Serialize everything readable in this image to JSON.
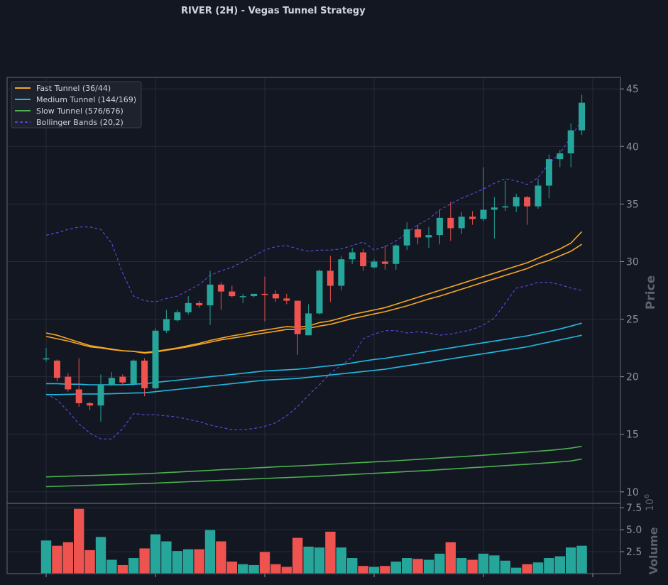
{
  "colors": {
    "background": "#131722",
    "panel": "#131722",
    "grid": "#262b38",
    "axis": "#4a4f5c",
    "text": "#d1d4dc",
    "tick": "#8c919c",
    "up": "#26a69a",
    "down": "#ef5350",
    "fast": "#f5a623",
    "medium": "#22b8e0",
    "slow": "#4caf50",
    "bollinger": "#6a4cf5"
  },
  "chart_data": {
    "type": "candlestick",
    "title": "RIVER (2H) - Vegas Tunnel Strategy",
    "ylabel": "Price",
    "volume_label": "Volume",
    "volume_unit": "1e6",
    "ylim": [
      9,
      46
    ],
    "vol_ylim": [
      0,
      8
    ],
    "yticks": [
      "10",
      "15",
      "20",
      "25",
      "30",
      "35",
      "40",
      "45"
    ],
    "vol_ticks": [
      "2.5",
      "5.0",
      "7.5"
    ],
    "legend": [
      {
        "label": "Fast Tunnel (36/44)",
        "key": "fast"
      },
      {
        "label": "Medium Tunnel (144/169)",
        "key": "medium"
      },
      {
        "label": "Slow Tunnel (576/676)",
        "key": "slow"
      },
      {
        "label": "Bollinger Bands (20,2)",
        "key": "bollinger"
      }
    ],
    "candles": [
      [
        21.5,
        21.6,
        21.3,
        22.5
      ],
      [
        21.4,
        19.9,
        19.6,
        21.5
      ],
      [
        20.0,
        18.9,
        18.7,
        20.3
      ],
      [
        18.9,
        17.7,
        17.4,
        21.6
      ],
      [
        17.7,
        17.5,
        17.1,
        17.8
      ],
      [
        17.5,
        19.3,
        16.1,
        20.2
      ],
      [
        19.3,
        19.9,
        19.2,
        20.4
      ],
      [
        20.0,
        19.5,
        19.3,
        20.2
      ],
      [
        19.4,
        21.4,
        19.2,
        21.5
      ],
      [
        21.4,
        19.0,
        18.3,
        21.6
      ],
      [
        19.0,
        24.0,
        18.9,
        24.2
      ],
      [
        24.0,
        25.0,
        23.8,
        25.8
      ],
      [
        24.9,
        25.6,
        24.8,
        25.8
      ],
      [
        25.6,
        26.4,
        25.4,
        27.0
      ],
      [
        26.4,
        26.2,
        26.0,
        26.6
      ],
      [
        26.2,
        28.0,
        24.5,
        29.2
      ],
      [
        28.0,
        27.4,
        25.8,
        28.2
      ],
      [
        27.4,
        27.0,
        26.9,
        27.9
      ],
      [
        27.0,
        27.0,
        26.4,
        27.2
      ],
      [
        27.0,
        27.2,
        26.9,
        27.2
      ],
      [
        27.2,
        27.1,
        24.8,
        28.7
      ],
      [
        27.2,
        26.8,
        26.5,
        27.5
      ],
      [
        26.8,
        26.6,
        26.3,
        27.2
      ],
      [
        26.6,
        23.7,
        21.9,
        26.6
      ],
      [
        23.6,
        25.5,
        23.6,
        26.3
      ],
      [
        25.5,
        29.2,
        25.4,
        29.3
      ],
      [
        29.2,
        27.9,
        26.5,
        30.5
      ],
      [
        27.9,
        30.2,
        27.5,
        30.5
      ],
      [
        30.2,
        30.8,
        29.8,
        31.2
      ],
      [
        30.8,
        29.6,
        29.2,
        31.1
      ],
      [
        29.5,
        30.0,
        29.4,
        30.2
      ],
      [
        30.0,
        29.8,
        29.3,
        31.4
      ],
      [
        29.8,
        31.4,
        29.3,
        31.5
      ],
      [
        31.4,
        32.8,
        31.0,
        33.4
      ],
      [
        32.8,
        32.1,
        31.5,
        33.2
      ],
      [
        32.1,
        32.3,
        31.2,
        33.0
      ],
      [
        32.3,
        33.8,
        31.5,
        34.5
      ],
      [
        33.8,
        32.9,
        31.8,
        35.2
      ],
      [
        32.9,
        33.9,
        32.4,
        34.3
      ],
      [
        33.9,
        33.7,
        33.2,
        34.4
      ],
      [
        33.7,
        34.5,
        33.5,
        38.2
      ],
      [
        34.5,
        34.7,
        32.0,
        35.6
      ],
      [
        34.7,
        34.8,
        34.4,
        37.0
      ],
      [
        34.8,
        35.6,
        34.3,
        35.9
      ],
      [
        35.6,
        34.8,
        33.2,
        35.7
      ],
      [
        34.8,
        36.6,
        34.6,
        37.2
      ],
      [
        36.6,
        38.9,
        35.5,
        39.3
      ],
      [
        38.9,
        39.4,
        38.2,
        39.7
      ],
      [
        39.4,
        41.4,
        38.2,
        42.0
      ],
      [
        41.4,
        43.8,
        41.0,
        44.5
      ]
    ],
    "volume": [
      3.8,
      3.2,
      3.6,
      7.4,
      2.7,
      4.2,
      1.6,
      1.0,
      1.8,
      2.9,
      4.5,
      3.7,
      2.6,
      2.8,
      2.8,
      5.0,
      3.7,
      1.4,
      1.1,
      1.0,
      2.5,
      1.1,
      0.8,
      4.1,
      3.1,
      3.0,
      4.8,
      3.0,
      1.8,
      0.9,
      0.8,
      0.9,
      1.4,
      1.8,
      1.7,
      1.6,
      2.3,
      3.6,
      1.8,
      1.6,
      2.3,
      2.1,
      1.5,
      0.7,
      1.1,
      1.3,
      1.8,
      2.0,
      3.0,
      3.2
    ],
    "fast_upper": [
      23.8,
      23.6,
      23.3,
      23.0,
      22.7,
      22.55,
      22.4,
      22.25,
      22.2,
      22.1,
      22.2,
      22.35,
      22.5,
      22.7,
      22.9,
      23.15,
      23.35,
      23.55,
      23.7,
      23.9,
      24.05,
      24.2,
      24.35,
      24.3,
      24.4,
      24.7,
      24.85,
      25.1,
      25.4,
      25.6,
      25.8,
      26.0,
      26.3,
      26.6,
      26.9,
      27.2,
      27.5,
      27.8,
      28.1,
      28.4,
      28.7,
      29.0,
      29.3,
      29.6,
      29.9,
      30.3,
      30.7,
      31.1,
      31.6,
      32.6
    ],
    "fast_lower": [
      23.5,
      23.3,
      23.1,
      22.85,
      22.6,
      22.5,
      22.35,
      22.25,
      22.2,
      22.05,
      22.15,
      22.3,
      22.45,
      22.6,
      22.8,
      23.0,
      23.2,
      23.35,
      23.5,
      23.65,
      23.8,
      23.95,
      24.1,
      24.1,
      24.2,
      24.4,
      24.55,
      24.8,
      25.05,
      25.25,
      25.45,
      25.65,
      25.9,
      26.15,
      26.45,
      26.75,
      27.0,
      27.3,
      27.6,
      27.9,
      28.2,
      28.5,
      28.8,
      29.1,
      29.4,
      29.8,
      30.1,
      30.5,
      30.9,
      31.5
    ],
    "medium_upper": [
      19.4,
      19.4,
      19.35,
      19.35,
      19.3,
      19.3,
      19.3,
      19.3,
      19.35,
      19.4,
      19.5,
      19.6,
      19.7,
      19.8,
      19.9,
      20.0,
      20.1,
      20.2,
      20.3,
      20.4,
      20.5,
      20.55,
      20.6,
      20.65,
      20.75,
      20.85,
      20.95,
      21.05,
      21.2,
      21.35,
      21.5,
      21.6,
      21.75,
      21.9,
      22.05,
      22.2,
      22.35,
      22.5,
      22.65,
      22.8,
      22.95,
      23.1,
      23.25,
      23.4,
      23.55,
      23.75,
      23.95,
      24.15,
      24.4,
      24.65
    ],
    "medium_lower": [
      18.45,
      18.45,
      18.47,
      18.5,
      18.5,
      18.5,
      18.52,
      18.55,
      18.58,
      18.6,
      18.7,
      18.8,
      18.9,
      19.0,
      19.1,
      19.2,
      19.3,
      19.4,
      19.5,
      19.6,
      19.7,
      19.75,
      19.8,
      19.85,
      19.95,
      20.05,
      20.15,
      20.25,
      20.35,
      20.45,
      20.55,
      20.65,
      20.8,
      20.95,
      21.1,
      21.25,
      21.4,
      21.55,
      21.7,
      21.85,
      22.0,
      22.15,
      22.3,
      22.45,
      22.6,
      22.8,
      23.0,
      23.2,
      23.4,
      23.6
    ],
    "slow_upper": [
      11.3,
      11.33,
      11.36,
      11.39,
      11.42,
      11.45,
      11.48,
      11.51,
      11.54,
      11.57,
      11.62,
      11.67,
      11.72,
      11.77,
      11.82,
      11.87,
      11.92,
      11.97,
      12.02,
      12.07,
      12.12,
      12.17,
      12.21,
      12.25,
      12.3,
      12.35,
      12.4,
      12.45,
      12.5,
      12.55,
      12.6,
      12.65,
      12.7,
      12.76,
      12.82,
      12.88,
      12.94,
      13.0,
      13.06,
      13.12,
      13.18,
      13.25,
      13.32,
      13.39,
      13.46,
      13.53,
      13.6,
      13.69,
      13.8,
      13.95
    ],
    "slow_lower": [
      10.45,
      10.48,
      10.51,
      10.54,
      10.57,
      10.6,
      10.63,
      10.66,
      10.69,
      10.72,
      10.76,
      10.8,
      10.84,
      10.88,
      10.92,
      10.96,
      11.0,
      11.04,
      11.08,
      11.12,
      11.16,
      11.2,
      11.24,
      11.28,
      11.32,
      11.36,
      11.41,
      11.46,
      11.51,
      11.56,
      11.61,
      11.66,
      11.71,
      11.76,
      11.81,
      11.86,
      11.92,
      11.98,
      12.04,
      12.1,
      12.16,
      12.22,
      12.28,
      12.34,
      12.4,
      12.46,
      12.53,
      12.6,
      12.68,
      12.85
    ],
    "boll_upper": [
      32.3,
      32.5,
      32.8,
      33.0,
      33.0,
      32.8,
      31.6,
      29.0,
      27.0,
      26.6,
      26.5,
      26.8,
      27.0,
      27.5,
      28.0,
      28.8,
      29.2,
      29.5,
      30.0,
      30.5,
      31.0,
      31.3,
      31.4,
      31.1,
      30.9,
      31.0,
      31.0,
      31.1,
      31.4,
      31.7,
      31.0,
      31.3,
      31.8,
      32.5,
      33.2,
      33.7,
      34.5,
      35.0,
      35.5,
      35.9,
      36.3,
      36.8,
      37.2,
      37.0,
      36.7,
      37.3,
      38.5,
      39.4,
      40.8,
      42.3
    ],
    "boll_lower": [
      18.5,
      18.0,
      17.0,
      15.9,
      15.1,
      14.6,
      14.6,
      15.5,
      16.8,
      16.7,
      16.7,
      16.6,
      16.5,
      16.3,
      16.1,
      15.8,
      15.6,
      15.4,
      15.4,
      15.5,
      15.7,
      16.0,
      16.6,
      17.4,
      18.4,
      19.3,
      20.3,
      21.0,
      21.7,
      23.3,
      23.7,
      24.0,
      24.0,
      23.8,
      23.9,
      23.8,
      23.6,
      23.7,
      23.9,
      24.1,
      24.5,
      25.1,
      26.4,
      27.7,
      27.9,
      28.2,
      28.2,
      28.0,
      27.7,
      27.5
    ]
  }
}
